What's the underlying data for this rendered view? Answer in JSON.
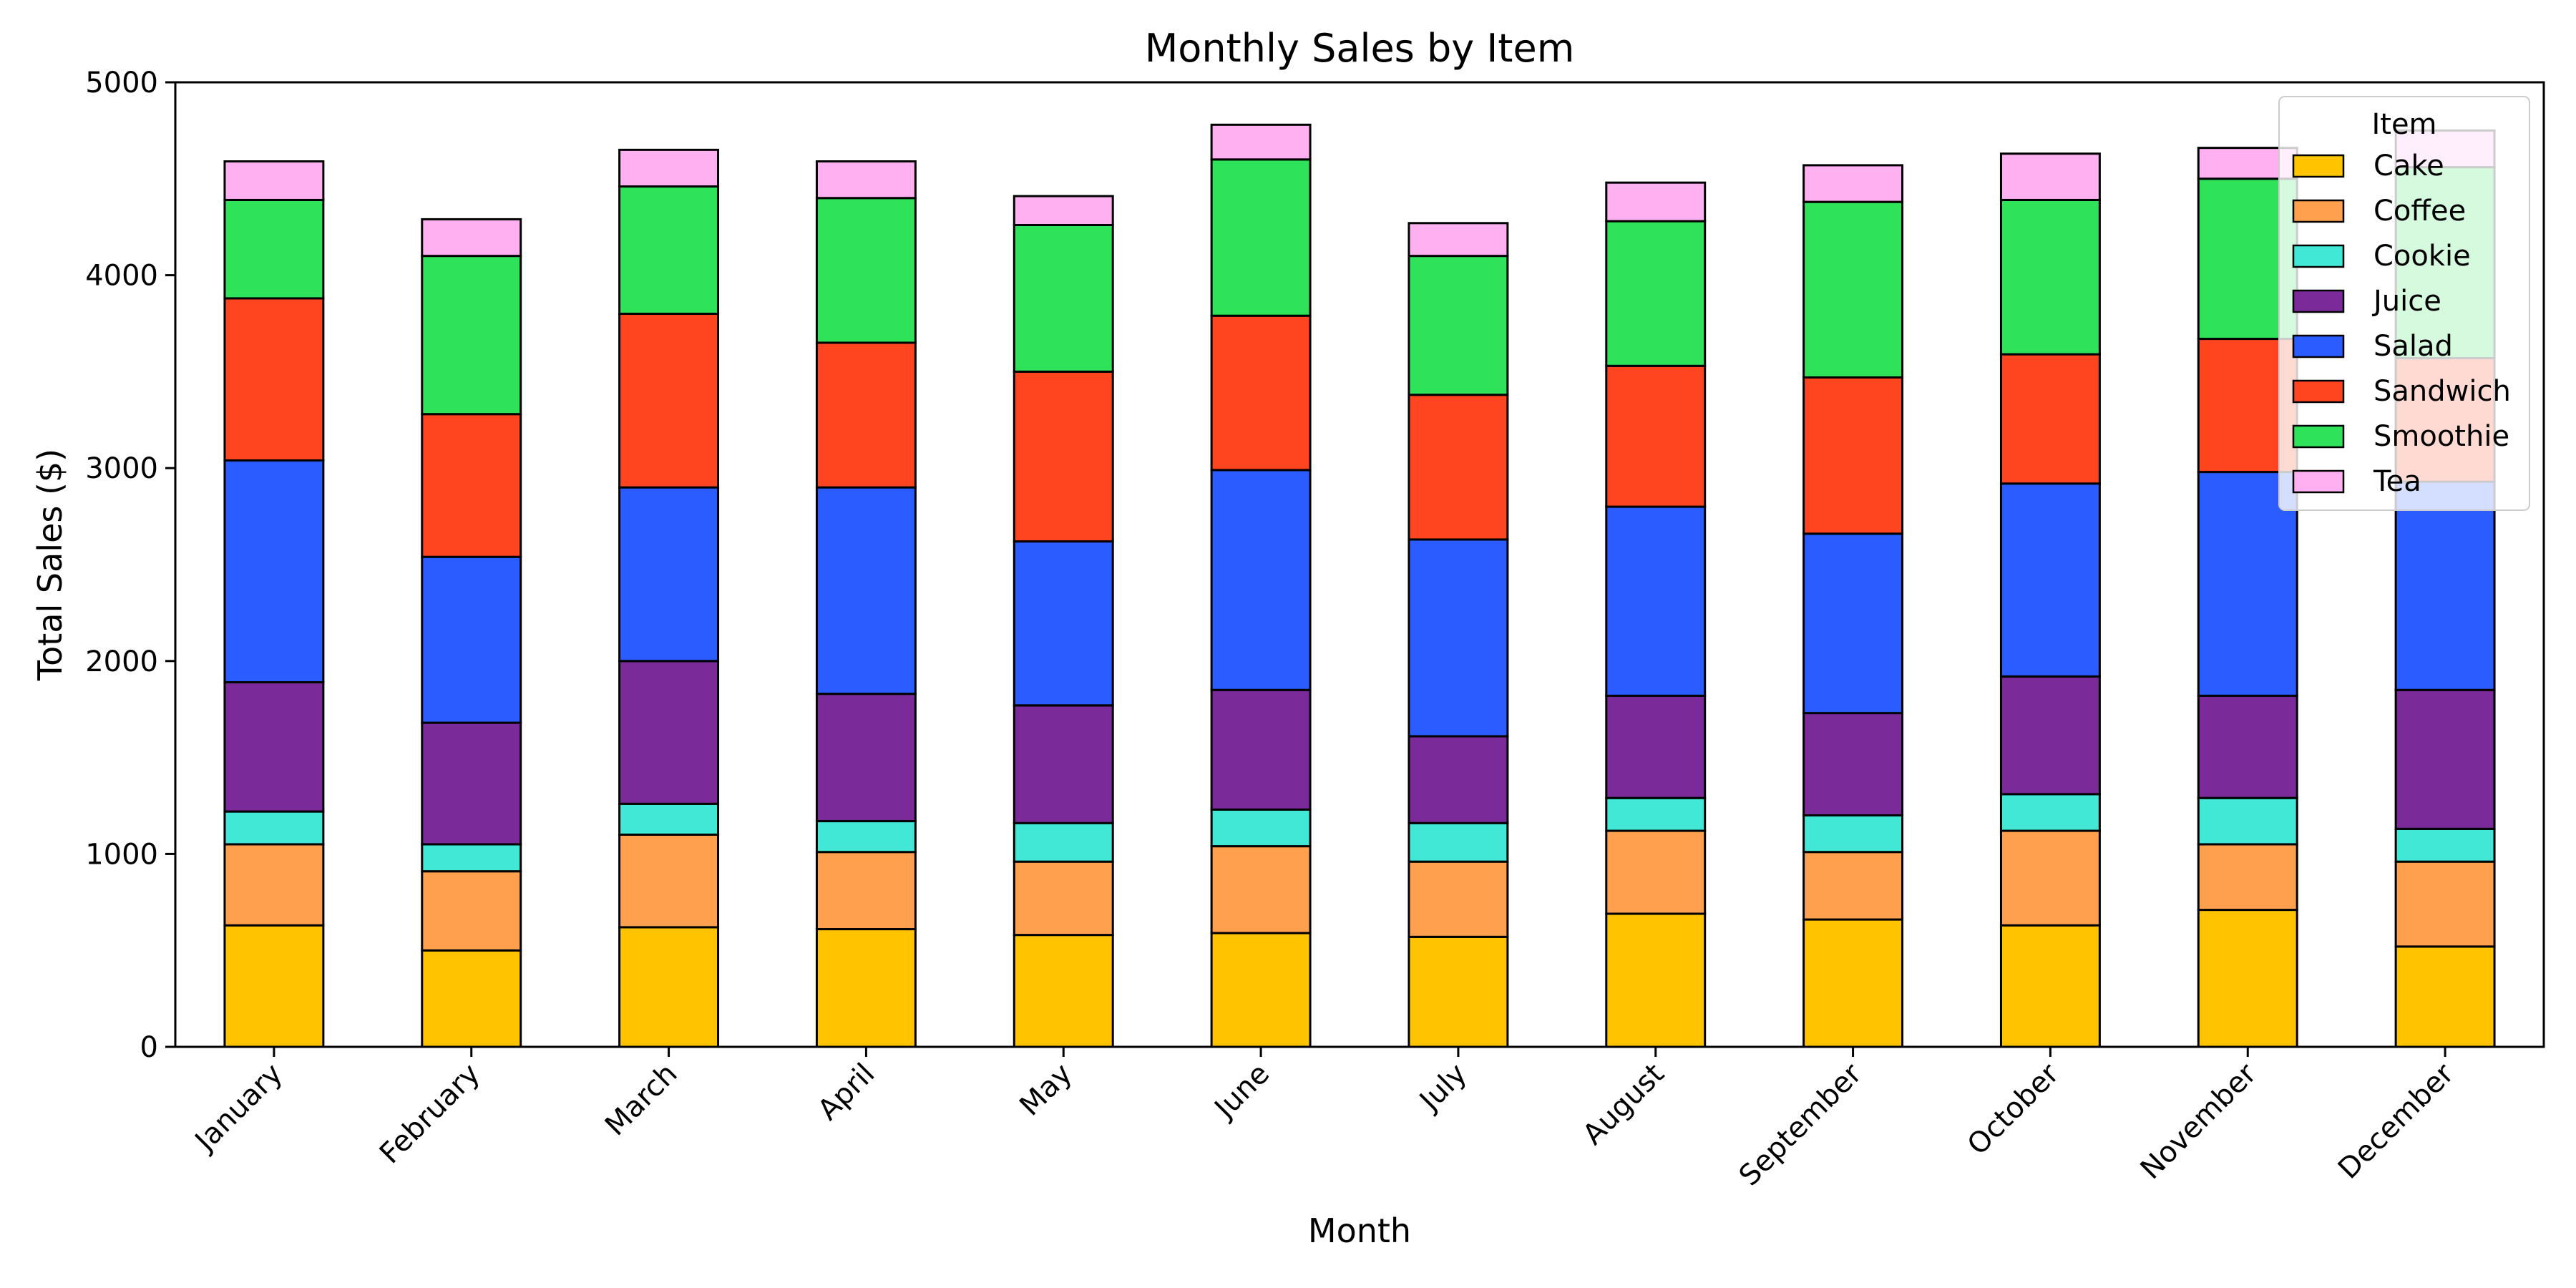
{
  "chart_data": {
    "type": "bar",
    "stacked": true,
    "title": "Monthly Sales by Item",
    "xlabel": "Month",
    "ylabel": "Total Sales ($)",
    "ylim": [
      0,
      5000
    ],
    "yticks": [
      0,
      1000,
      2000,
      3000,
      4000,
      5000
    ],
    "grid": false,
    "legend": {
      "title": "Item",
      "placement": "top-right"
    },
    "categories": [
      "January",
      "February",
      "March",
      "April",
      "May",
      "June",
      "July",
      "August",
      "September",
      "October",
      "November",
      "December"
    ],
    "series": [
      {
        "name": "Cake",
        "color": "#FFC300",
        "values": [
          630,
          500,
          620,
          610,
          580,
          590,
          570,
          690,
          660,
          630,
          710,
          520
        ]
      },
      {
        "name": "Coffee",
        "color": "#FFA04F",
        "values": [
          420,
          410,
          480,
          400,
          380,
          450,
          390,
          430,
          350,
          490,
          340,
          440
        ]
      },
      {
        "name": "Cookie",
        "color": "#40E8D5",
        "values": [
          170,
          140,
          160,
          160,
          200,
          190,
          200,
          170,
          190,
          190,
          240,
          170
        ]
      },
      {
        "name": "Juice",
        "color": "#7B2A9A",
        "values": [
          670,
          630,
          740,
          660,
          610,
          620,
          450,
          530,
          530,
          610,
          530,
          720
        ]
      },
      {
        "name": "Salad",
        "color": "#2B5CFF",
        "values": [
          1150,
          860,
          900,
          1070,
          850,
          1140,
          1020,
          980,
          930,
          1000,
          1160,
          1080
        ]
      },
      {
        "name": "Sandwich",
        "color": "#FF4520",
        "values": [
          840,
          740,
          900,
          750,
          880,
          800,
          750,
          730,
          810,
          670,
          690,
          640
        ]
      },
      {
        "name": "Smoothie",
        "color": "#2EE35A",
        "values": [
          510,
          820,
          660,
          750,
          760,
          810,
          720,
          750,
          910,
          800,
          830,
          990
        ]
      },
      {
        "name": "Tea",
        "color": "#FFB0F0",
        "values": [
          200,
          190,
          190,
          190,
          150,
          180,
          170,
          200,
          190,
          240,
          160,
          190
        ]
      }
    ]
  }
}
